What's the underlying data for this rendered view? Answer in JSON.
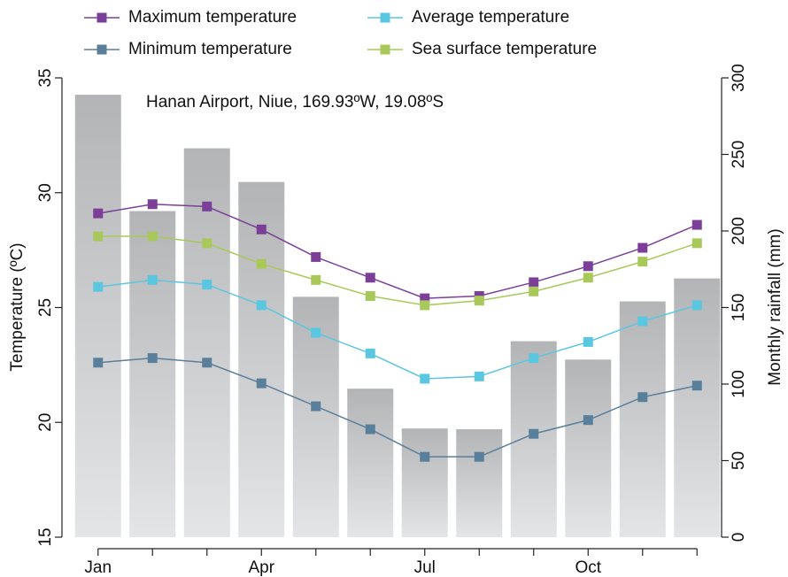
{
  "chart_data": {
    "type": "combo",
    "annotation": "Hanan Airport, Niue, 169.93ºW, 19.08ºS",
    "ylabel": "Temperature (ºC)",
    "y2label": "Monthly rainfall (mm)",
    "categories": [
      "Jan",
      null,
      null,
      "Apr",
      null,
      null,
      "Jul",
      null,
      null,
      "Oct",
      null,
      null
    ],
    "ylim": [
      15,
      35
    ],
    "yticks": [
      15,
      20,
      25,
      30,
      35
    ],
    "y2lim": [
      0,
      300
    ],
    "y2ticks": [
      0,
      50,
      100,
      150,
      200,
      250,
      300
    ],
    "series": [
      {
        "name": "Monthly rainfall",
        "kind": "bar",
        "axis": "y2",
        "color": "#bdbec0",
        "values": [
          289,
          213,
          254,
          232,
          157,
          97,
          71,
          70.5,
          128,
          116,
          154,
          169
        ]
      },
      {
        "name": "Maximum temperature",
        "kind": "line",
        "color": "#7b3f98",
        "values": [
          29.1,
          29.5,
          29.4,
          28.4,
          27.2,
          26.3,
          25.4,
          25.5,
          26.1,
          26.8,
          27.6,
          28.6
        ]
      },
      {
        "name": "Minimum temperature",
        "kind": "line",
        "color": "#5a7f9b",
        "values": [
          22.6,
          22.8,
          22.6,
          21.7,
          20.7,
          19.7,
          18.5,
          18.5,
          19.5,
          20.1,
          21.1,
          21.6
        ]
      },
      {
        "name": "Average temperature",
        "kind": "line",
        "color": "#5bc6e0",
        "values": [
          25.9,
          26.2,
          26.0,
          25.1,
          23.9,
          23.0,
          21.9,
          22.0,
          22.8,
          23.5,
          24.4,
          25.1
        ]
      },
      {
        "name": "Sea surface temperature",
        "kind": "line",
        "color": "#a8c95a",
        "values": [
          28.1,
          28.1,
          27.8,
          26.9,
          26.2,
          25.5,
          25.1,
          25.3,
          25.7,
          26.3,
          27.0,
          27.8
        ]
      }
    ]
  }
}
